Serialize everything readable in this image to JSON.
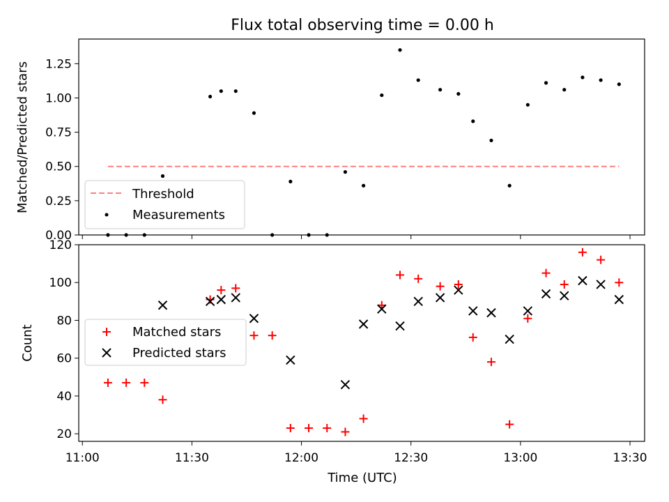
{
  "title": "Flux total observing time = 0.00 h",
  "chart_data": [
    {
      "type": "scatter",
      "panel": "top",
      "ylabel": "Matched/Predicted stars",
      "xlabel": "",
      "xlim": [
        "10:59",
        "13:34"
      ],
      "ylim": [
        0,
        1.43
      ],
      "yticks": [
        0.0,
        0.25,
        0.5,
        0.75,
        1.0,
        1.25
      ],
      "ytick_labels": [
        "0.00",
        "0.25",
        "0.50",
        "0.75",
        "1.00",
        "1.25"
      ],
      "xticks": [
        "11:00",
        "11:30",
        "12:00",
        "12:30",
        "13:00",
        "13:30"
      ],
      "legend_position": "lower-left",
      "threshold": {
        "name": "Threshold",
        "y": 0.5,
        "x": [
          "11:07",
          "13:27"
        ],
        "color": "#ff7f7f",
        "style": "dashed"
      },
      "series": [
        {
          "name": "Measurements",
          "marker": "dot",
          "color": "#000000",
          "x": [
            "11:07",
            "11:12",
            "11:17",
            "11:22",
            "11:35",
            "11:38",
            "11:42",
            "11:47",
            "11:52",
            "11:57",
            "12:02",
            "12:07",
            "12:12",
            "12:17",
            "12:22",
            "12:27",
            "12:32",
            "12:38",
            "12:43",
            "12:47",
            "12:52",
            "12:57",
            "13:02",
            "13:07",
            "13:12",
            "13:17",
            "13:22",
            "13:27"
          ],
          "y": [
            0.0,
            0.0,
            0.0,
            0.43,
            1.01,
            1.05,
            1.05,
            0.89,
            0.0,
            0.39,
            0.0,
            0.0,
            0.46,
            0.36,
            1.02,
            1.35,
            1.13,
            1.06,
            1.03,
            0.83,
            0.69,
            0.36,
            0.95,
            1.11,
            1.06,
            1.15,
            1.13,
            1.1
          ]
        }
      ]
    },
    {
      "type": "scatter",
      "panel": "bottom",
      "ylabel": "Count",
      "xlabel": "Time (UTC)",
      "xlim": [
        "10:59",
        "13:34"
      ],
      "ylim": [
        16,
        120
      ],
      "yticks": [
        20,
        40,
        60,
        80,
        100,
        120
      ],
      "ytick_labels": [
        "20",
        "40",
        "60",
        "80",
        "100",
        "120"
      ],
      "xticks": [
        "11:00",
        "11:30",
        "12:00",
        "12:30",
        "13:00",
        "13:30"
      ],
      "legend_position": "center-left",
      "series": [
        {
          "name": "Matched stars",
          "marker": "plus",
          "color": "#ff0000",
          "x": [
            "11:07",
            "11:12",
            "11:17",
            "11:22",
            "11:35",
            "11:38",
            "11:42",
            "11:47",
            "11:52",
            "11:57",
            "12:02",
            "12:07",
            "12:12",
            "12:17",
            "12:22",
            "12:27",
            "12:32",
            "12:38",
            "12:43",
            "12:47",
            "12:52",
            "12:57",
            "13:02",
            "13:07",
            "13:12",
            "13:17",
            "13:22",
            "13:27"
          ],
          "y": [
            47,
            47,
            47,
            38,
            91,
            96,
            97,
            72,
            72,
            23,
            23,
            23,
            21,
            28,
            88,
            104,
            102,
            98,
            99,
            71,
            58,
            25,
            81,
            105,
            99,
            116,
            112,
            100
          ]
        },
        {
          "name": "Predicted stars",
          "marker": "x",
          "color": "#000000",
          "x": [
            "11:22",
            "11:35",
            "11:38",
            "11:42",
            "11:47",
            "11:57",
            "12:12",
            "12:17",
            "12:22",
            "12:27",
            "12:32",
            "12:38",
            "12:43",
            "12:47",
            "12:52",
            "12:57",
            "13:02",
            "13:07",
            "13:12",
            "13:17",
            "13:22",
            "13:27"
          ],
          "y": [
            88,
            90,
            91,
            92,
            81,
            59,
            46,
            78,
            86,
            77,
            90,
            92,
            96,
            85,
            84,
            70,
            85,
            94,
            93,
            101,
            99,
            91
          ]
        }
      ]
    }
  ]
}
